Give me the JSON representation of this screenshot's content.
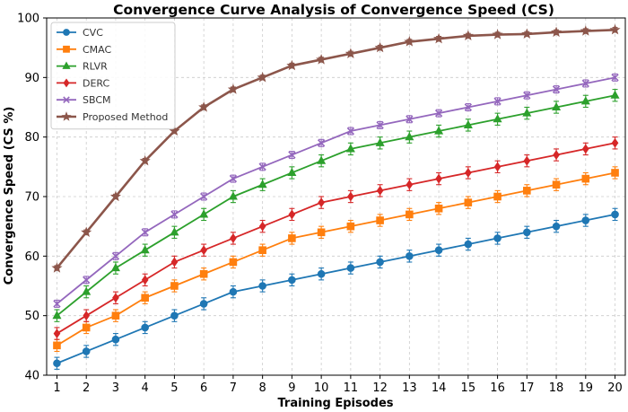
{
  "chart_data": {
    "type": "line",
    "title": "Convergence Curve Analysis of Convergence Speed (CS)",
    "xlabel": "Training Episodes",
    "ylabel": "Convergence Speed (CS %)",
    "x": [
      1,
      2,
      3,
      4,
      5,
      6,
      7,
      8,
      9,
      10,
      11,
      12,
      13,
      14,
      15,
      16,
      17,
      18,
      19,
      20
    ],
    "xlim": [
      0.65,
      20.35
    ],
    "ylim": [
      40,
      100
    ],
    "yticks": [
      40,
      50,
      60,
      70,
      80,
      90,
      100
    ],
    "grid": true,
    "error_bars": true,
    "legend_position": "upper-left",
    "series": [
      {
        "name": "CVC",
        "color": "#1f77b4",
        "marker": "circle",
        "values": [
          42,
          44,
          46,
          48,
          50,
          52,
          54,
          55,
          56,
          57,
          58,
          59,
          60,
          61,
          62,
          63,
          64,
          65,
          66,
          67
        ],
        "errors": [
          1,
          1,
          1,
          1,
          1,
          1,
          1,
          1,
          1,
          1,
          1,
          1,
          1,
          1,
          1,
          1,
          1,
          1,
          1,
          1
        ]
      },
      {
        "name": "CMAC",
        "color": "#ff7f0e",
        "marker": "square",
        "values": [
          45,
          48,
          50,
          53,
          55,
          57,
          59,
          61,
          63,
          64,
          65,
          66,
          67,
          68,
          69,
          70,
          71,
          72,
          73,
          74
        ],
        "errors": [
          1,
          1,
          1,
          1,
          1,
          1,
          1,
          1,
          1,
          1,
          1,
          1,
          1,
          1,
          1,
          1,
          1,
          1,
          1,
          1
        ]
      },
      {
        "name": "RLVR",
        "color": "#2ca02c",
        "marker": "triangle",
        "values": [
          50,
          54,
          58,
          61,
          64,
          67,
          70,
          72,
          74,
          76,
          78,
          79,
          80,
          81,
          82,
          83,
          84,
          85,
          86,
          87
        ],
        "errors": [
          1,
          1,
          1,
          1,
          1,
          1,
          1,
          1,
          1,
          1,
          1,
          1,
          1,
          1,
          1,
          1,
          1,
          1,
          1,
          1
        ]
      },
      {
        "name": "DERC",
        "color": "#d62728",
        "marker": "diamond",
        "values": [
          47,
          50,
          53,
          56,
          59,
          61,
          63,
          65,
          67,
          69,
          70,
          71,
          72,
          73,
          74,
          75,
          76,
          77,
          78,
          79
        ],
        "errors": [
          1,
          1,
          1,
          1,
          1,
          1,
          1,
          1,
          1,
          1,
          1,
          1,
          1,
          1,
          1,
          1,
          1,
          1,
          1,
          1
        ]
      },
      {
        "name": "SBCM",
        "color": "#9467bd",
        "marker": "x",
        "values": [
          52,
          56,
          60,
          64,
          67,
          70,
          73,
          75,
          77,
          79,
          81,
          82,
          83,
          84,
          85,
          86,
          87,
          88,
          89,
          90
        ],
        "errors": [
          0.6,
          0.6,
          0.6,
          0.6,
          0.6,
          0.6,
          0.6,
          0.6,
          0.6,
          0.6,
          0.6,
          0.6,
          0.6,
          0.6,
          0.6,
          0.6,
          0.6,
          0.6,
          0.6,
          0.6
        ]
      },
      {
        "name": "Proposed Method",
        "color": "#8c564b",
        "marker": "star",
        "values": [
          58,
          64,
          70,
          76,
          81,
          85,
          88,
          90,
          92,
          93,
          94,
          95,
          96,
          96.5,
          97,
          97.2,
          97.3,
          97.6,
          97.8,
          98
        ],
        "errors": [
          0.4,
          0.4,
          0.4,
          0.4,
          0.4,
          0.4,
          0.4,
          0.4,
          0.4,
          0.4,
          0.4,
          0.4,
          0.4,
          0.4,
          0.4,
          0.4,
          0.4,
          0.4,
          0.4,
          0.4
        ]
      }
    ]
  }
}
